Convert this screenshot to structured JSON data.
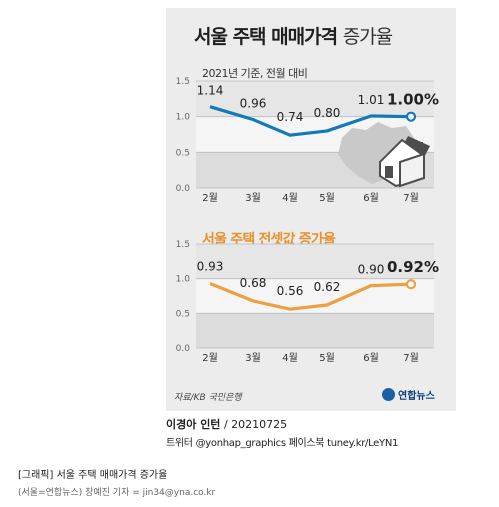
{
  "graphic": {
    "title_bold": "서울 주택 매매가격",
    "title_light": "증가율",
    "subtitle": "2021년 기준, 전월 대비",
    "title2": "서울 주택 전셋값 증가율",
    "source": "자료/KB 국민은행",
    "logo_text": "연합뉴스"
  },
  "credit": {
    "author": "이경아 인턴",
    "date": "/ 20210725",
    "social": "트위터 @yonhap_graphics  페이스북 tuney.kr/LeYN1"
  },
  "caption": {
    "title": "[그래픽] 서울 주택 매매가격 증가율",
    "subtitle": "(서울=연합뉴스) 장예진 기자 = jin34@yna.co.kr"
  },
  "chart_data": [
    {
      "type": "line",
      "title": "서울 주택 매매가격 증가율",
      "subtitle": "2021년 기준, 전월 대비",
      "categories": [
        "2월",
        "3월",
        "4월",
        "5월",
        "6월",
        "7월"
      ],
      "values": [
        1.14,
        0.96,
        0.74,
        0.8,
        1.01,
        1.0
      ],
      "value_labels": [
        "1.14",
        "0.96",
        "0.74",
        "0.80",
        "1.01",
        "1.00%"
      ],
      "yticks": [
        "0.0",
        "0.5",
        "1.0",
        "1.5"
      ],
      "ylim": [
        0,
        1.5
      ],
      "color": "#1479b8"
    },
    {
      "type": "line",
      "title": "서울 주택 전셋값 증가율",
      "categories": [
        "2월",
        "3월",
        "4월",
        "5월",
        "6월",
        "7월"
      ],
      "values": [
        0.93,
        0.68,
        0.56,
        0.62,
        0.9,
        0.92
      ],
      "value_labels": [
        "0.93",
        "0.68",
        "0.56",
        "0.62",
        "0.90",
        "0.92%"
      ],
      "yticks": [
        "0.0",
        "0.5",
        "1.0",
        "1.5"
      ],
      "ylim": [
        0,
        1.5
      ],
      "color": "#eda040"
    }
  ]
}
